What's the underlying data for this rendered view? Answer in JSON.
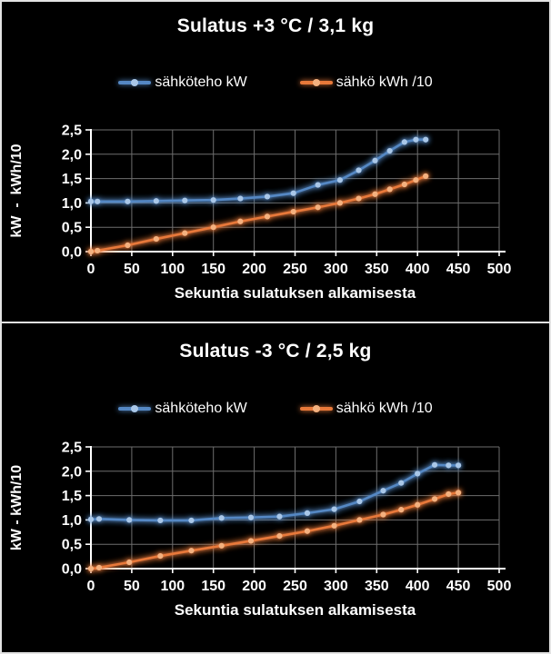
{
  "style": {
    "background": "#000000",
    "panel_border": "#e3e3e3",
    "text_color": "#ffffff",
    "grid_color": "#6e6e6e",
    "axis_color": "#ffffff"
  },
  "chart_data": [
    {
      "type": "line",
      "title": "Sulatus +3 °C / 3,1 kg",
      "xlabel": "Sekuntia sulatuksen alkamisesta",
      "ylabel": "kW  -  kWh/10",
      "xlim": [
        0,
        500
      ],
      "ylim": [
        0,
        2.5
      ],
      "grid": true,
      "legend_position": "top",
      "xticks": [
        0,
        50,
        100,
        150,
        200,
        250,
        300,
        350,
        400,
        450,
        500
      ],
      "yticks": [
        {
          "v": 0.0,
          "label": "0,0"
        },
        {
          "v": 0.5,
          "label": "0,5"
        },
        {
          "v": 1.0,
          "label": "1,0"
        },
        {
          "v": 1.5,
          "label": "1,5"
        },
        {
          "v": 2.0,
          "label": "2,0"
        },
        {
          "v": 2.5,
          "label": "2,5"
        }
      ],
      "x": [
        0,
        8,
        45,
        80,
        115,
        150,
        183,
        216,
        248,
        278,
        305,
        328,
        348,
        366,
        384,
        398,
        410
      ],
      "series": [
        {
          "name": "sähköteho kW",
          "color": "#5588c4",
          "marker_color": "#a9c7e8",
          "values": [
            1.03,
            1.03,
            1.03,
            1.04,
            1.05,
            1.06,
            1.09,
            1.13,
            1.2,
            1.37,
            1.47,
            1.67,
            1.87,
            2.07,
            2.25,
            2.3,
            2.3
          ]
        },
        {
          "name": "sähkö kWh /10",
          "color": "#e8793a",
          "marker_color": "#f4b17f",
          "values": [
            0.0,
            0.02,
            0.13,
            0.26,
            0.38,
            0.5,
            0.62,
            0.72,
            0.82,
            0.91,
            1.0,
            1.09,
            1.18,
            1.28,
            1.38,
            1.47,
            1.55
          ]
        }
      ]
    },
    {
      "type": "line",
      "title": "Sulatus -3 °C / 2,5 kg",
      "xlabel": "Sekuntia sulatuksen alkamisesta",
      "ylabel": "kW - kWh/10",
      "xlim": [
        0,
        500
      ],
      "ylim": [
        0,
        2.5
      ],
      "grid": true,
      "legend_position": "top",
      "xticks": [
        0,
        50,
        100,
        150,
        200,
        250,
        300,
        350,
        400,
        450,
        500
      ],
      "yticks": [
        {
          "v": 0.0,
          "label": "0,0"
        },
        {
          "v": 0.5,
          "label": "0,5"
        },
        {
          "v": 1.0,
          "label": "1,0"
        },
        {
          "v": 1.5,
          "label": "1,5"
        },
        {
          "v": 2.0,
          "label": "2,0"
        },
        {
          "v": 2.5,
          "label": "2,5"
        }
      ],
      "x": [
        0,
        10,
        47,
        85,
        123,
        160,
        196,
        231,
        265,
        298,
        329,
        358,
        380,
        400,
        421,
        438,
        450
      ],
      "series": [
        {
          "name": "sähköteho kW",
          "color": "#5588c4",
          "marker_color": "#a9c7e8",
          "values": [
            1.01,
            1.02,
            1.0,
            0.99,
            0.99,
            1.04,
            1.05,
            1.07,
            1.14,
            1.22,
            1.38,
            1.6,
            1.76,
            1.95,
            2.13,
            2.12,
            2.12
          ]
        },
        {
          "name": "sähkö kWh /10",
          "color": "#e8793a",
          "marker_color": "#f4b17f",
          "values": [
            0.0,
            0.02,
            0.13,
            0.26,
            0.37,
            0.47,
            0.57,
            0.67,
            0.77,
            0.88,
            1.0,
            1.11,
            1.21,
            1.31,
            1.43,
            1.53,
            1.56
          ]
        }
      ]
    }
  ]
}
